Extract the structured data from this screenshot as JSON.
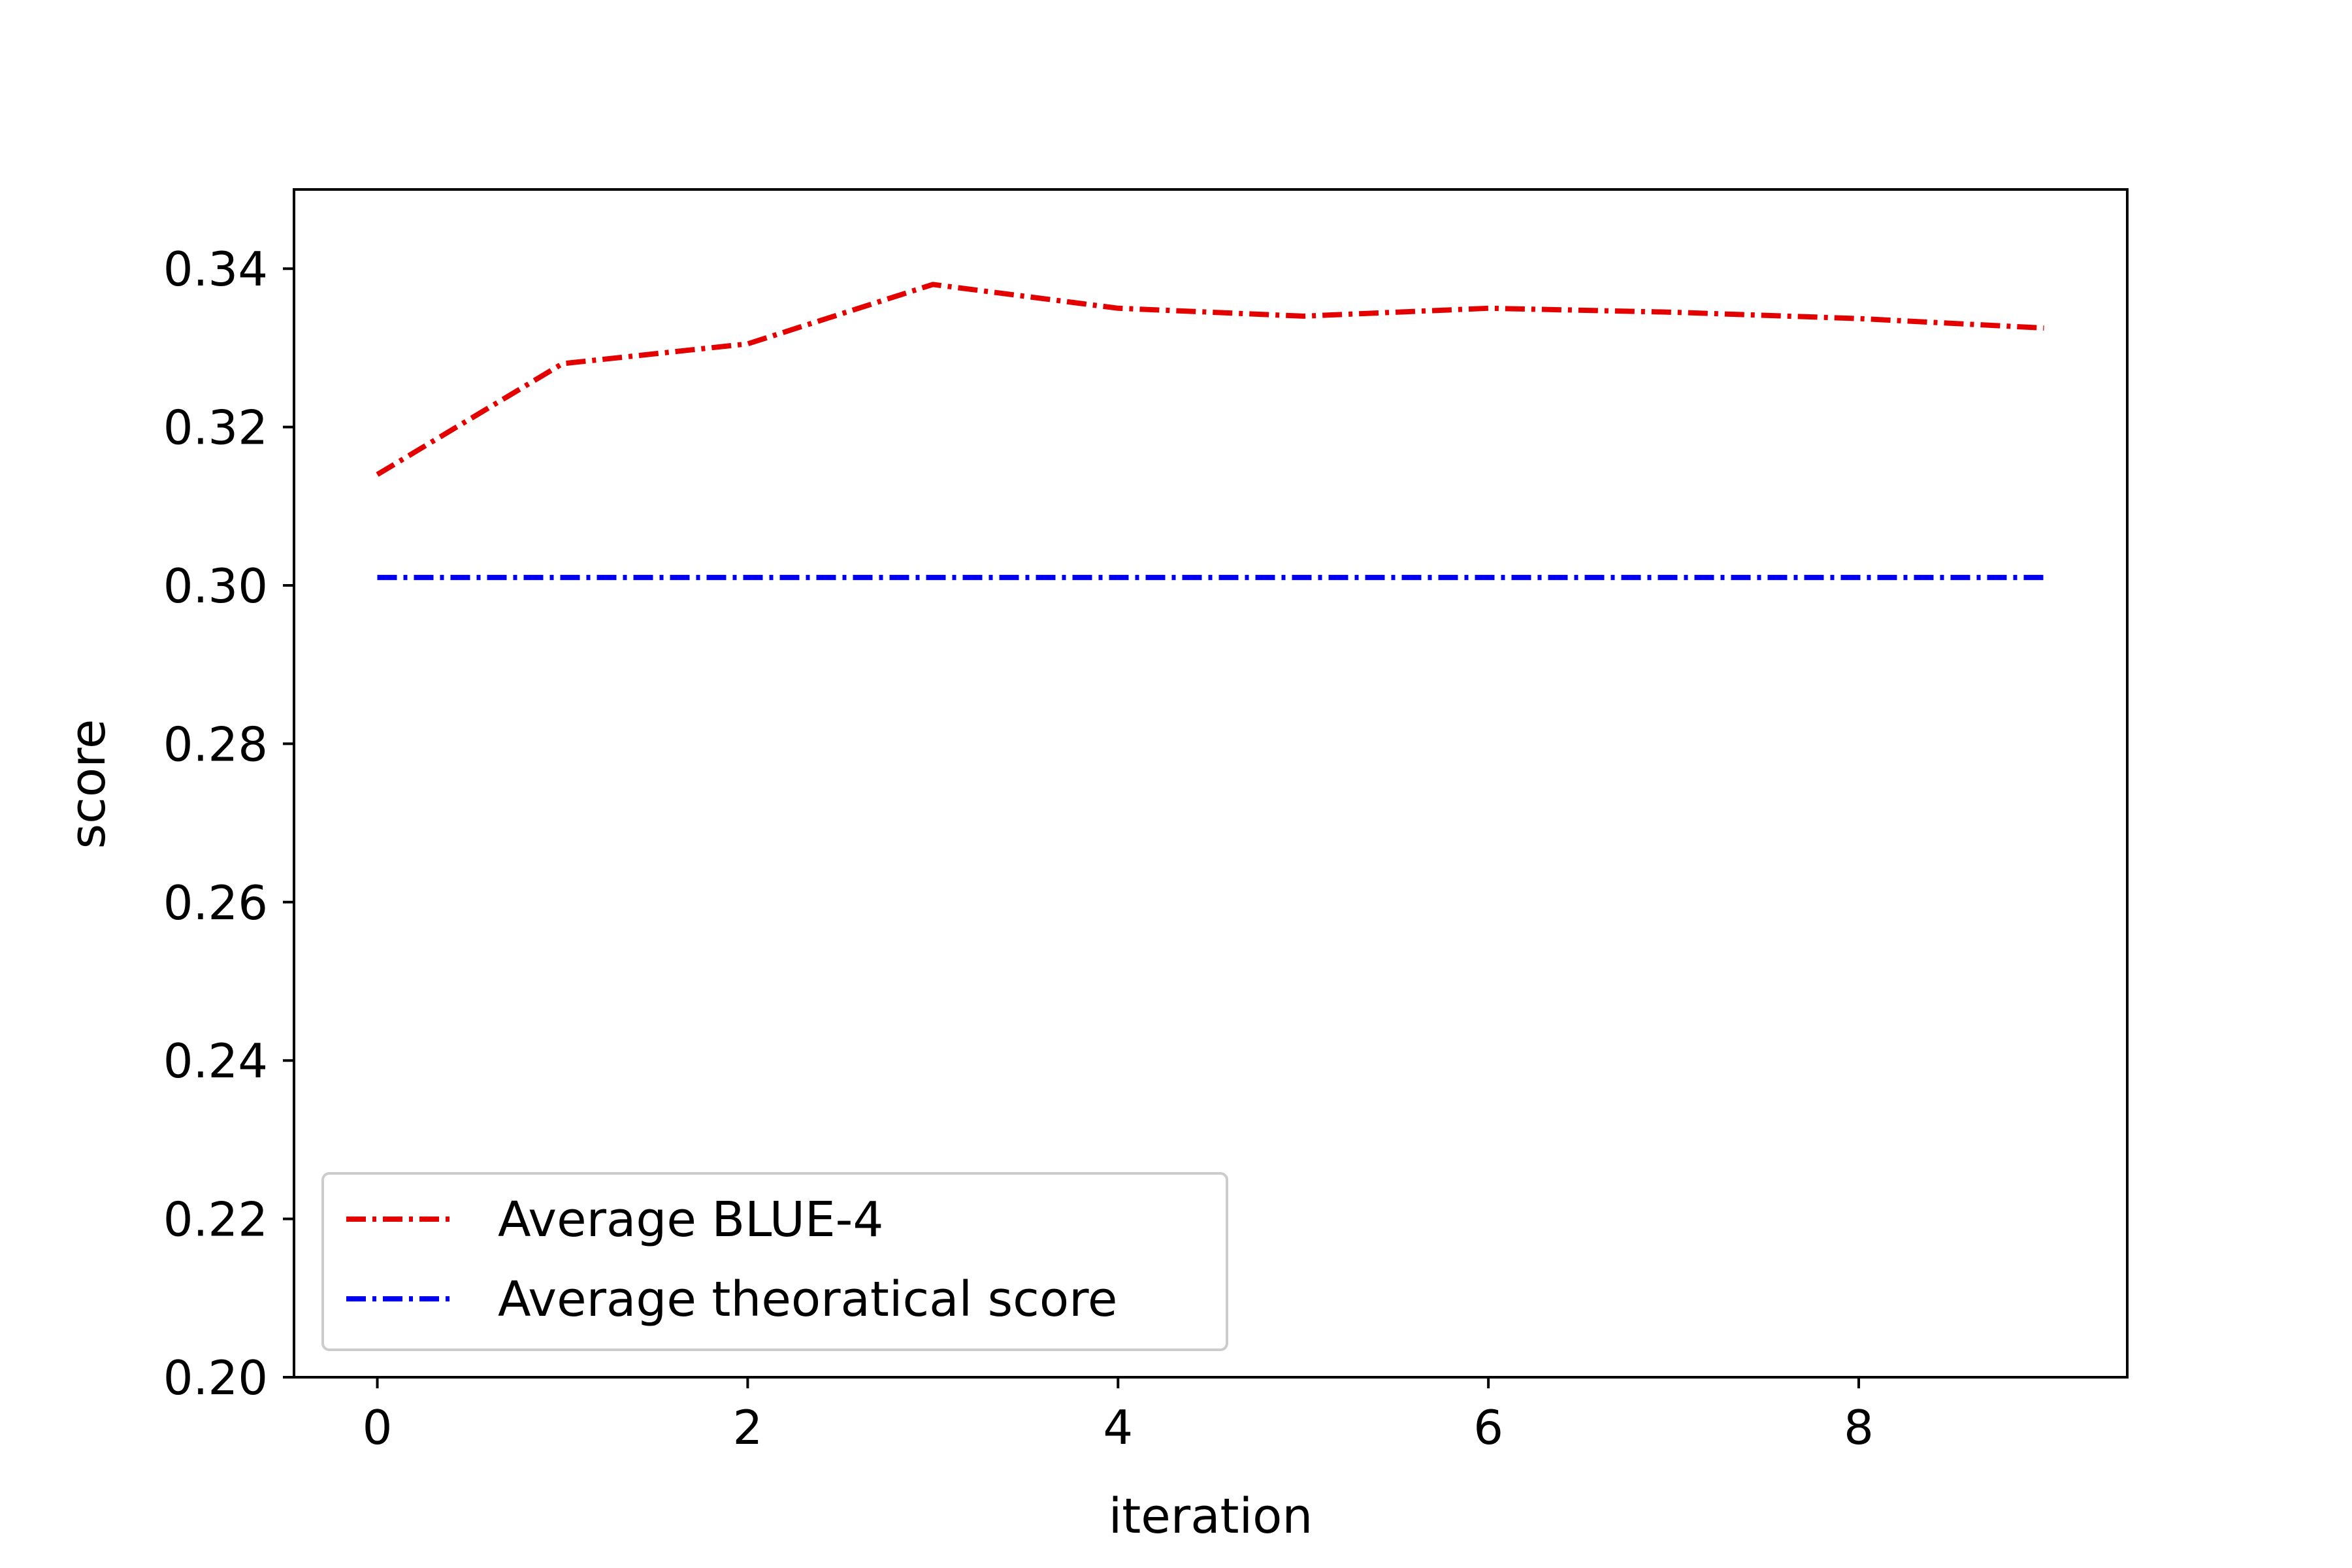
{
  "chart_data": {
    "type": "line",
    "title": "",
    "xlabel": "iteration",
    "ylabel": "score",
    "x": [
      0,
      1,
      2,
      3,
      4,
      5,
      6,
      7,
      8,
      9
    ],
    "xlim": [
      -0.45,
      9.45
    ],
    "ylim": [
      0.2,
      0.35
    ],
    "xticks": [
      0,
      2,
      4,
      6,
      8
    ],
    "xtick_labels": [
      "0",
      "2",
      "4",
      "6",
      "8"
    ],
    "yticks": [
      0.2,
      0.22,
      0.24,
      0.26,
      0.28,
      0.3,
      0.32,
      0.34
    ],
    "ytick_labels": [
      "0.20",
      "0.22",
      "0.24",
      "0.26",
      "0.28",
      "0.30",
      "0.32",
      "0.34"
    ],
    "grid": false,
    "legend_position": "lower-left",
    "series": [
      {
        "name": "Average BLUE-4",
        "color": "#e50000",
        "linestyle": "dashdot",
        "values": [
          0.314,
          0.328,
          0.3305,
          0.338,
          0.335,
          0.334,
          0.335,
          0.3345,
          0.3337,
          0.3325
        ]
      },
      {
        "name": "Average theoratical score",
        "color": "#0000ee",
        "linestyle": "dashdot",
        "values": [
          0.301,
          0.301,
          0.301,
          0.301,
          0.301,
          0.301,
          0.301,
          0.301,
          0.301,
          0.301
        ]
      }
    ]
  }
}
